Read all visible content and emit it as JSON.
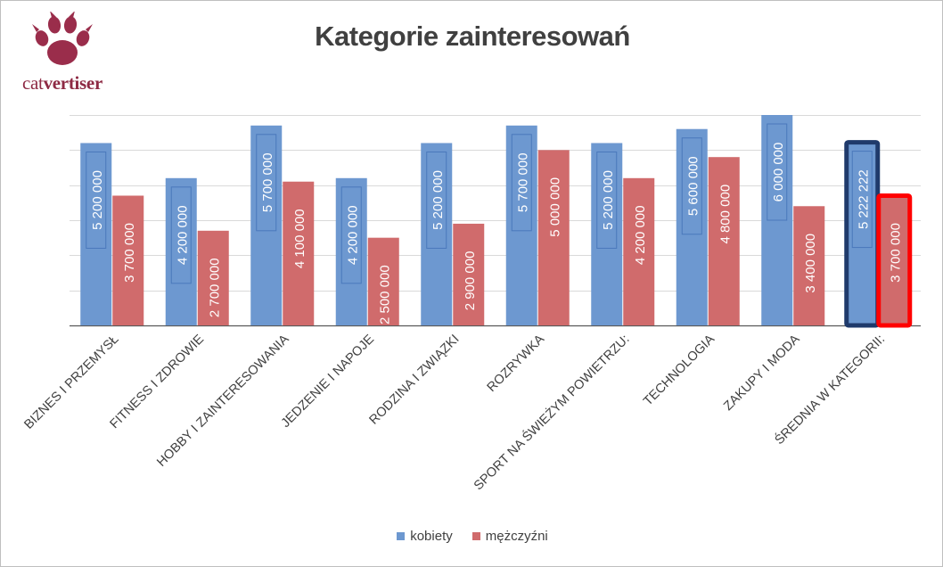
{
  "logo": {
    "text_part1": "cat",
    "text_part2": "vertiser"
  },
  "chart_data": {
    "type": "bar",
    "title": "Kategorie zainteresowań",
    "categories": [
      "BIZNES I PRZEMYSŁ",
      "FITNESS I ZDROWIE",
      "HOBBY I ZAINTERESOWANIA",
      "JEDZENIE I NAPOJE",
      "RODZINA I ZWIĄZKI",
      "ROZRYWKA",
      "SPORT NA ŚWIEŻYM POWIETRZU:",
      "TECHNOLOGIA",
      "ZAKUPY I MODA",
      "ŚREDNIA W KATEGORII:"
    ],
    "series": [
      {
        "name": "kobiety",
        "color": "#6d98d0",
        "values": [
          5200000,
          4200000,
          5700000,
          4200000,
          5200000,
          5700000,
          5200000,
          5600000,
          6000000,
          5222222
        ],
        "labels": [
          "5 200 000",
          "4 200 000",
          "5 700 000",
          "4 200 000",
          "5 200 000",
          "5 700 000",
          "5 200 000",
          "5 600 000",
          "6 000 000",
          "5 222 222"
        ]
      },
      {
        "name": "mężczyźni",
        "color": "#d06b6c",
        "values": [
          3700000,
          2700000,
          4100000,
          2500000,
          2900000,
          5000000,
          4200000,
          4800000,
          3400000,
          3700000
        ],
        "labels": [
          "3 700 000",
          "2 700 000",
          "4 100 000",
          "2 500 000",
          "2 900 000",
          "5 000 000",
          "4 200 000",
          "4 800 000",
          "3 400 000",
          "3 700 000"
        ]
      }
    ],
    "highlight_category": "ŚREDNIA W KATEGORII:",
    "highlight_colors": {
      "kobiety": "#1f3a6b",
      "mężczyźni": "#ff0000"
    },
    "ylim": [
      0,
      6000000
    ],
    "y_gridlines": [
      0,
      1000000,
      2000000,
      3000000,
      4000000,
      5000000,
      6000000
    ],
    "y_tick_labels_shown": false,
    "grid": true,
    "legend_position": "bottom",
    "data_labels": "inside-end-rotated"
  }
}
